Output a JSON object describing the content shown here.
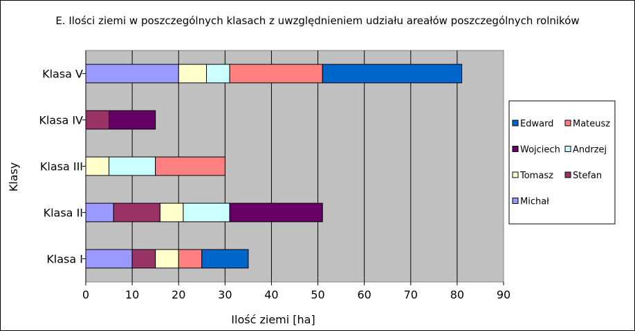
{
  "chart_data": {
    "type": "bar",
    "orientation": "horizontal",
    "stacked": true,
    "title": "E. Ilości ziemi w poszczególnych klasach z uwzględnieniem udziału areałów poszczególnych rolników",
    "xlabel": "Ilość ziemi [ha]",
    "ylabel": "Klasy",
    "xlim": [
      0,
      90
    ],
    "xticks": [
      0,
      10,
      20,
      30,
      40,
      50,
      60,
      70,
      80,
      90
    ],
    "grid": true,
    "legend_position": "right",
    "categories": [
      "Klasa I",
      "Klasa II",
      "Klasa III",
      "Klasa IV",
      "Klasa V"
    ],
    "series": [
      {
        "name": "Michał",
        "color": "#9999ff",
        "values": [
          10,
          6,
          0,
          0,
          20
        ]
      },
      {
        "name": "Stefan",
        "color": "#993366",
        "values": [
          5,
          10,
          0,
          5,
          0
        ]
      },
      {
        "name": "Tomasz",
        "color": "#ffffcc",
        "values": [
          5,
          5,
          5,
          0,
          6
        ]
      },
      {
        "name": "Andrzej",
        "color": "#ccffff",
        "values": [
          0,
          10,
          10,
          0,
          5
        ]
      },
      {
        "name": "Wojciech",
        "color": "#660066",
        "values": [
          0,
          20,
          0,
          10,
          0
        ]
      },
      {
        "name": "Mateusz",
        "color": "#ff8080",
        "values": [
          5,
          0,
          15,
          0,
          20
        ]
      },
      {
        "name": "Edward",
        "color": "#0066cc",
        "values": [
          10,
          0,
          0,
          0,
          30
        ]
      }
    ],
    "legend_order": [
      "Edward",
      "Mateusz",
      "Wojciech",
      "Andrzej",
      "Tomasz",
      "Stefan",
      "Michał"
    ],
    "plot_background": "#c0c0c0"
  }
}
